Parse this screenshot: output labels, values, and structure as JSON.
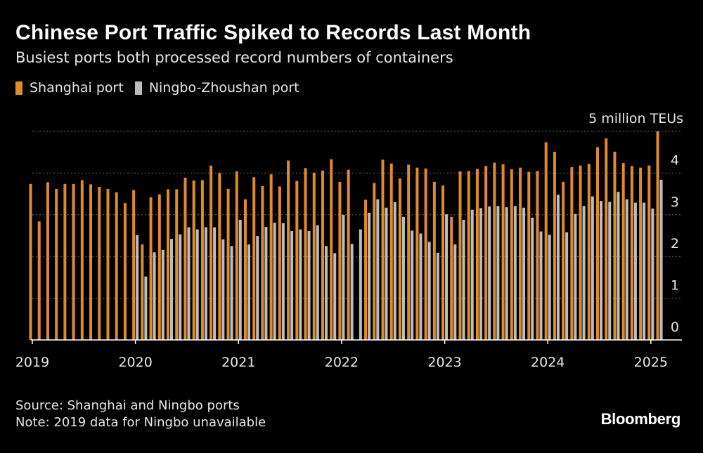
{
  "colors": {
    "shanghai": "#E08A2E",
    "ningbo": "#BDBDBD",
    "grid": "#6a6a6a",
    "axis": "#ffffff"
  },
  "footer": {
    "source": "Source: Shanghai and Ningbo ports",
    "note": "Note: 2019 data for Ningbo unavailable"
  },
  "logo": "Bloomberg",
  "chart_data": {
    "type": "bar",
    "title": "Chinese Port Traffic Spiked to Records Last Month",
    "subtitle": "Busiest ports both processed record numbers of containers",
    "ylabel": "5 million TEUs",
    "ylim": [
      0,
      5
    ],
    "yticks": [
      0,
      1,
      2,
      3,
      4
    ],
    "grid": true,
    "legend_position": "top-left",
    "x_ticks": [
      "2019",
      "2020",
      "2021",
      "2022",
      "2023",
      "2024",
      "2025"
    ],
    "x_start": "2019-01",
    "x_end": "2025-01",
    "series": [
      {
        "name": "Shanghai port",
        "values": [
          3.74,
          2.84,
          3.78,
          3.62,
          3.74,
          3.74,
          3.83,
          3.73,
          3.67,
          3.62,
          3.54,
          3.28,
          3.59,
          2.29,
          3.42,
          3.49,
          3.61,
          3.61,
          3.89,
          3.82,
          3.83,
          4.18,
          4.0,
          3.62,
          4.04,
          3.37,
          3.9,
          3.69,
          3.97,
          3.68,
          4.3,
          3.81,
          4.12,
          4.01,
          4.06,
          4.33,
          3.79,
          4.08,
          null,
          3.36,
          3.76,
          4.32,
          4.23,
          3.87,
          4.2,
          4.13,
          4.11,
          3.79,
          3.7,
          2.95,
          4.04,
          4.05,
          4.1,
          4.17,
          4.25,
          4.21,
          4.09,
          4.13,
          4.03,
          4.05,
          4.74,
          4.51,
          3.79,
          4.14,
          4.18,
          4.22,
          4.62,
          4.83,
          4.51,
          4.24,
          4.17,
          4.13,
          4.18,
          5.0
        ]
      },
      {
        "name": "Ningbo-Zhoushan port",
        "values": [
          null,
          null,
          null,
          null,
          null,
          null,
          null,
          null,
          null,
          null,
          null,
          null,
          2.51,
          1.52,
          2.1,
          2.16,
          2.42,
          2.53,
          2.7,
          2.65,
          2.7,
          2.7,
          2.41,
          2.25,
          2.88,
          2.29,
          2.49,
          2.71,
          2.81,
          2.8,
          2.61,
          2.65,
          2.61,
          2.75,
          2.25,
          2.08,
          3.0,
          2.3,
          2.65,
          3.05,
          3.37,
          3.17,
          3.3,
          2.95,
          2.62,
          2.55,
          2.35,
          2.09,
          3.01,
          2.29,
          2.88,
          3.12,
          3.16,
          3.2,
          3.21,
          3.18,
          3.21,
          3.17,
          2.93,
          2.6,
          2.52,
          3.48,
          2.58,
          3.02,
          3.21,
          3.44,
          3.33,
          3.31,
          3.55,
          3.37,
          3.29,
          3.29,
          3.15,
          3.84
        ]
      }
    ]
  }
}
